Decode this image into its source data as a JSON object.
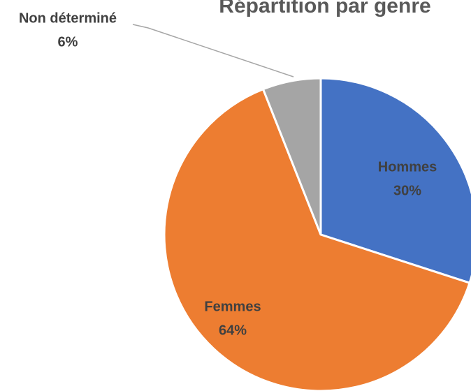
{
  "chart_data": {
    "type": "pie",
    "title": "Répartition par genre",
    "categories": [
      "Hommes",
      "Femmes",
      "Non déterminé"
    ],
    "values": [
      30,
      64,
      6
    ],
    "value_labels": [
      "30%",
      "64%",
      "6%"
    ],
    "colors": [
      "#4472c4",
      "#ed7d31",
      "#a5a5a5"
    ]
  }
}
